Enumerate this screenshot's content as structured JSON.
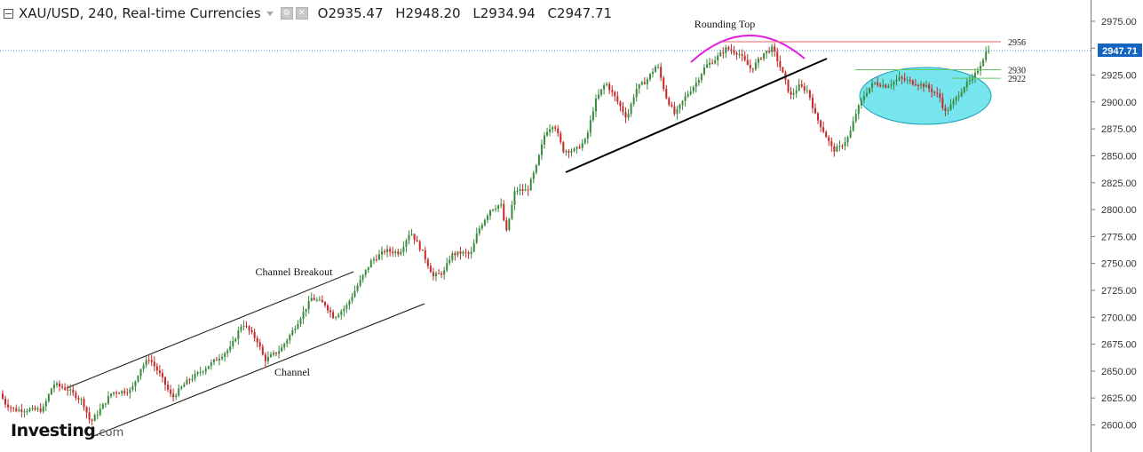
{
  "header": {
    "symbol": "XAU/USD, 240, Real-time Currencies",
    "open": "O2935.47",
    "high": "H2948.20",
    "low": "L2934.94",
    "close": "C2947.71"
  },
  "logo": {
    "brand": "Investing",
    "suffix": ".com"
  },
  "colors": {
    "up": "#3a8a3e",
    "down": "#c62828",
    "last_price_bg": "#1565c0",
    "rounding_top": "#e024e0",
    "resistance": "#e06666",
    "support": "#66c966",
    "consolidation_fill": "#5fe0ea",
    "consolidation_stroke": "#1ba1b4"
  },
  "chart_data": {
    "type": "candlestick",
    "symbol": "XAU/USD",
    "timeframe": "240",
    "ylim": [
      2585,
      2990
    ],
    "y_ticks": [
      2600,
      2625,
      2650,
      2675,
      2700,
      2725,
      2750,
      2775,
      2800,
      2825,
      2850,
      2875,
      2900,
      2925,
      2950,
      2975
    ],
    "y_tick_labels": [
      "2600.00",
      "2625.00",
      "2650.00",
      "2675.00",
      "2700.00",
      "2725.00",
      "2750.00",
      "2775.00",
      "2800.00",
      "2825.00",
      "2850.00",
      "2875.00",
      "2900.00",
      "2925.00",
      "2950.00",
      "2975.00"
    ],
    "last_price": 2947.71,
    "last_price_label": "2947.71",
    "price_path": [
      [
        0,
        2632
      ],
      [
        8,
        2620
      ],
      [
        18,
        2614
      ],
      [
        50,
        2614
      ],
      [
        62,
        2638
      ],
      [
        78,
        2633
      ],
      [
        95,
        2622
      ],
      [
        104,
        2602
      ],
      [
        118,
        2618
      ],
      [
        128,
        2630
      ],
      [
        150,
        2632
      ],
      [
        160,
        2652
      ],
      [
        170,
        2662
      ],
      [
        182,
        2647
      ],
      [
        196,
        2625
      ],
      [
        212,
        2640
      ],
      [
        232,
        2652
      ],
      [
        252,
        2665
      ],
      [
        262,
        2672
      ],
      [
        275,
        2695
      ],
      [
        292,
        2678
      ],
      [
        300,
        2660
      ],
      [
        318,
        2670
      ],
      [
        332,
        2688
      ],
      [
        344,
        2705
      ],
      [
        353,
        2718
      ],
      [
        368,
        2712
      ],
      [
        378,
        2700
      ],
      [
        392,
        2710
      ],
      [
        405,
        2730
      ],
      [
        420,
        2752
      ],
      [
        436,
        2762
      ],
      [
        452,
        2760
      ],
      [
        464,
        2780
      ],
      [
        478,
        2760
      ],
      [
        490,
        2738
      ],
      [
        502,
        2742
      ],
      [
        510,
        2758
      ],
      [
        522,
        2760
      ],
      [
        532,
        2758
      ],
      [
        540,
        2780
      ],
      [
        554,
        2800
      ],
      [
        566,
        2805
      ],
      [
        572,
        2778
      ],
      [
        582,
        2818
      ],
      [
        596,
        2818
      ],
      [
        606,
        2840
      ],
      [
        616,
        2872
      ],
      [
        626,
        2880
      ],
      [
        636,
        2855
      ],
      [
        650,
        2855
      ],
      [
        662,
        2865
      ],
      [
        672,
        2900
      ],
      [
        684,
        2918
      ],
      [
        694,
        2905
      ],
      [
        708,
        2885
      ],
      [
        718,
        2912
      ],
      [
        730,
        2920
      ],
      [
        742,
        2935
      ],
      [
        752,
        2905
      ],
      [
        762,
        2888
      ],
      [
        774,
        2905
      ],
      [
        786,
        2918
      ],
      [
        796,
        2933
      ],
      [
        808,
        2940
      ],
      [
        820,
        2950
      ],
      [
        834,
        2945
      ],
      [
        848,
        2930
      ],
      [
        862,
        2945
      ],
      [
        872,
        2950
      ],
      [
        884,
        2925
      ],
      [
        892,
        2905
      ],
      [
        902,
        2915
      ],
      [
        912,
        2910
      ],
      [
        920,
        2888
      ],
      [
        930,
        2872
      ],
      [
        940,
        2855
      ],
      [
        948,
        2858
      ],
      [
        958,
        2868
      ],
      [
        966,
        2890
      ],
      [
        976,
        2908
      ],
      [
        986,
        2918
      ],
      [
        1000,
        2915
      ],
      [
        1015,
        2922
      ],
      [
        1030,
        2918
      ],
      [
        1044,
        2915
      ],
      [
        1060,
        2905
      ],
      [
        1066,
        2890
      ],
      [
        1074,
        2898
      ],
      [
        1088,
        2915
      ],
      [
        1098,
        2922
      ],
      [
        1106,
        2935
      ],
      [
        1113,
        2947.71
      ]
    ],
    "series": [
      {
        "name": "XAU/USD",
        "values": []
      }
    ],
    "annotations": [
      {
        "type": "text",
        "text": "Rounding Top"
      },
      {
        "type": "text",
        "text": "Channel Breakout"
      },
      {
        "type": "text",
        "text": "Channel"
      },
      {
        "type": "horizontal_level",
        "text": "2956",
        "value": 2956
      },
      {
        "type": "horizontal_level",
        "text": "2930",
        "value": 2930
      },
      {
        "type": "horizontal_level",
        "text": "2922",
        "value": 2922
      }
    ],
    "grid": true,
    "legend": "none"
  }
}
